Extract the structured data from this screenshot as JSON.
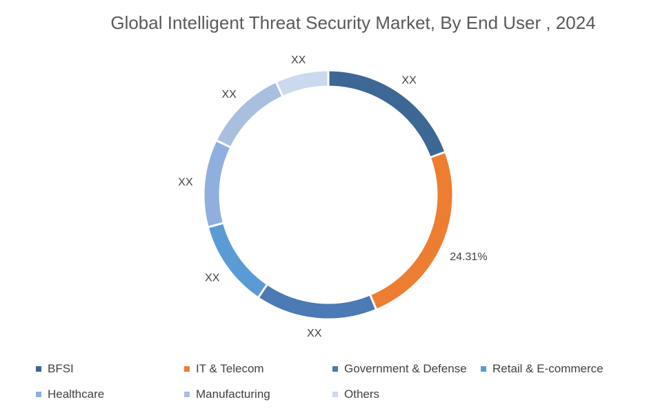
{
  "chart_data": {
    "type": "pie",
    "donut": true,
    "title": "Global Intelligent Threat Security Market, By End User , 2024",
    "categories": [
      "BFSI",
      "IT & Telecom",
      "Government & Defense",
      "Retail & E-commerce",
      "Healthcare",
      "Manufacturing",
      "Others"
    ],
    "values": [
      19.4,
      24.31,
      15.8,
      11.3,
      11.4,
      10.9,
      6.89
    ],
    "data_labels": [
      "XX",
      "24.31%",
      "XX",
      "XX",
      "XX",
      "XX",
      "XX"
    ],
    "colors": [
      "#3d6794",
      "#ed7d31",
      "#4b7ab4",
      "#5b9bd5",
      "#8fb0de",
      "#a9bfdf",
      "#cbd9ee"
    ],
    "legend_position": "bottom"
  }
}
